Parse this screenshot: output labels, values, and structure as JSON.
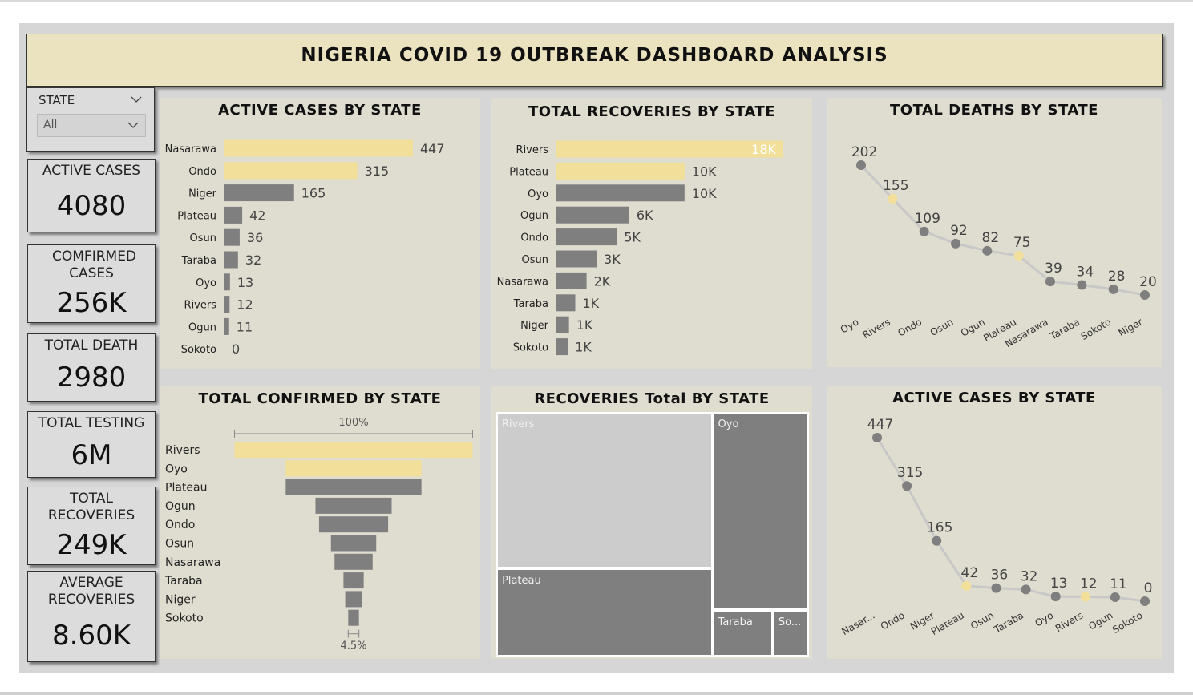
{
  "dashboard": {
    "title": "NIGERIA COVID 19 OUTBREAK DASHBOARD ANALYSIS"
  },
  "slicer": {
    "label": "STATE",
    "value": "All"
  },
  "kpis": [
    {
      "label": "ACTIVE CASES",
      "value": "4080"
    },
    {
      "label": "COMFIRMED CASES",
      "value": "256K"
    },
    {
      "label": "TOTAL DEATH",
      "value": "2980"
    },
    {
      "label": "TOTAL TESTING",
      "value": "6M"
    },
    {
      "label": "TOTAL RECOVERIES",
      "value": "249K"
    },
    {
      "label": "AVERAGE RECOVERIES",
      "value": "8.60K"
    }
  ],
  "colors": {
    "highlight": "#f2e09a",
    "bar": "#7f7f7f",
    "panel": "#dfdcd0",
    "line": "#c8c8c8"
  },
  "chart_data": [
    {
      "id": "active_bar",
      "type": "bar",
      "orientation": "horizontal",
      "title": "ACTIVE CASES BY STATE",
      "categories": [
        "Nasarawa",
        "Ondo",
        "Niger",
        "Plateau",
        "Osun",
        "Taraba",
        "Oyo",
        "Rivers",
        "Ogun",
        "Sokoto"
      ],
      "values": [
        447,
        315,
        165,
        42,
        36,
        32,
        13,
        12,
        11,
        0
      ],
      "labels": [
        "447",
        "315",
        "165",
        "42",
        "36",
        "32",
        "13",
        "12",
        "11",
        "0"
      ],
      "highlight": [
        0,
        1
      ]
    },
    {
      "id": "recoveries_bar",
      "type": "bar",
      "orientation": "horizontal",
      "title": "TOTAL RECOVERIES BY STATE",
      "categories": [
        "Rivers",
        "Plateau",
        "Oyo",
        "Ogun",
        "Ondo",
        "Osun",
        "Nasarawa",
        "Taraba",
        "Niger",
        "Sokoto"
      ],
      "values": [
        18000,
        10200,
        10200,
        5800,
        4800,
        3200,
        2400,
        1500,
        1000,
        900
      ],
      "labels": [
        "18K",
        "10K",
        "10K",
        "6K",
        "5K",
        "3K",
        "2K",
        "1K",
        "1K",
        "1K"
      ],
      "highlight": [
        0,
        1
      ]
    },
    {
      "id": "deaths_line",
      "type": "line",
      "title": "TOTAL DEATHS BY STATE",
      "categories": [
        "Oyo",
        "Rivers",
        "Ondo",
        "Osun",
        "Ogun",
        "Plateau",
        "Nasarawa",
        "Taraba",
        "Sokoto",
        "Niger"
      ],
      "values": [
        202,
        155,
        109,
        92,
        82,
        75,
        39,
        34,
        28,
        20
      ],
      "labels": [
        "202",
        "155",
        "109",
        "92",
        "82",
        "75",
        "39",
        "34",
        "28",
        "20"
      ],
      "highlight": [
        1,
        5
      ]
    },
    {
      "id": "confirmed_funnel",
      "type": "bar",
      "orientation": "funnel",
      "title": "TOTAL CONFIRMED BY STATE",
      "categories": [
        "Rivers",
        "Oyo",
        "Plateau",
        "Ogun",
        "Ondo",
        "Osun",
        "Nasarawa",
        "Taraba",
        "Niger",
        "Sokoto"
      ],
      "values": [
        100,
        57,
        57,
        32,
        29,
        19,
        16,
        8.5,
        7,
        4.5
      ],
      "top_label": "100%",
      "bottom_label": "4.5%",
      "highlight": [
        0,
        1
      ]
    },
    {
      "id": "recoveries_treemap",
      "type": "heatmap",
      "subtype": "treemap",
      "title": "RECOVERIES Total BY STATE",
      "categories": [
        "Rivers",
        "Oyo",
        "Plateau",
        "Taraba",
        "So..."
      ],
      "values": [
        18000,
        10200,
        10200,
        1500,
        900
      ],
      "highlight": [
        0
      ]
    },
    {
      "id": "active_line",
      "type": "line",
      "title": "ACTIVE CASES BY STATE",
      "categories": [
        "Nasar...",
        "Ondo",
        "Niger",
        "Plateau",
        "Osun",
        "Taraba",
        "Oyo",
        "Rivers",
        "Ogun",
        "Sokoto"
      ],
      "values": [
        447,
        315,
        165,
        42,
        36,
        32,
        13,
        12,
        11,
        0
      ],
      "labels": [
        "447",
        "315",
        "165",
        "42",
        "36",
        "32",
        "13",
        "12",
        "11",
        "0"
      ],
      "highlight": [
        3,
        7
      ]
    }
  ]
}
